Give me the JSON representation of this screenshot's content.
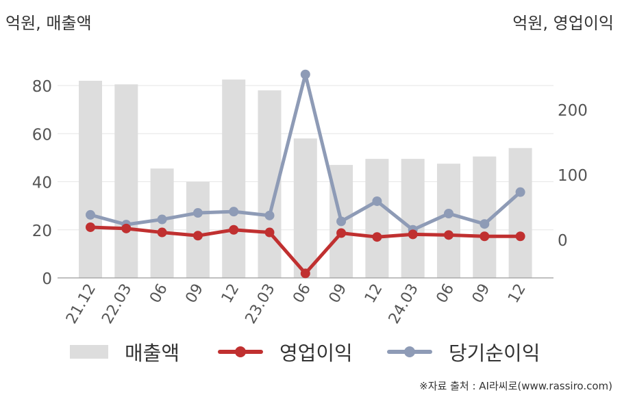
{
  "units": {
    "left": "억원, 매출액",
    "right": "억원, 영업이익"
  },
  "source": "※자료 출처 : AI라씨로(www.rassiro.com)",
  "colors": {
    "bar": "#dddddd",
    "operating": "#c03030",
    "net": "#8e9bb6",
    "grid": "#e6e6e6",
    "axis": "#aaaaaa"
  },
  "chart_data": {
    "type": "bar",
    "categories": [
      "21.12",
      "22.03",
      "06",
      "09",
      "12",
      "23.03",
      "06",
      "09",
      "12",
      "24.03",
      "06",
      "09",
      "12"
    ],
    "y_left": {
      "ylim": [
        0,
        80
      ],
      "ticks": [
        0,
        20,
        40,
        60,
        80
      ]
    },
    "y_right": {
      "ylim": [
        -60,
        260
      ],
      "ticks": [
        0,
        100,
        200
      ]
    },
    "series": [
      {
        "name": "매출액",
        "kind": "bar",
        "axis": "left",
        "values": [
          82,
          80.5,
          45.5,
          40,
          82.5,
          78,
          58,
          47,
          49.5,
          49.5,
          47.5,
          50.5,
          54
        ]
      },
      {
        "name": "영업이익",
        "kind": "line",
        "axis": "right",
        "values": [
          19,
          17,
          11,
          6,
          15,
          11,
          -52,
          10,
          4,
          8,
          7,
          5,
          5
        ]
      },
      {
        "name": "당기순이익",
        "kind": "line",
        "axis": "right",
        "values": [
          38,
          23,
          31,
          41,
          43,
          37,
          254,
          28,
          59,
          15,
          40,
          24,
          73
        ]
      }
    ],
    "grid": true,
    "legend": "bottom"
  }
}
